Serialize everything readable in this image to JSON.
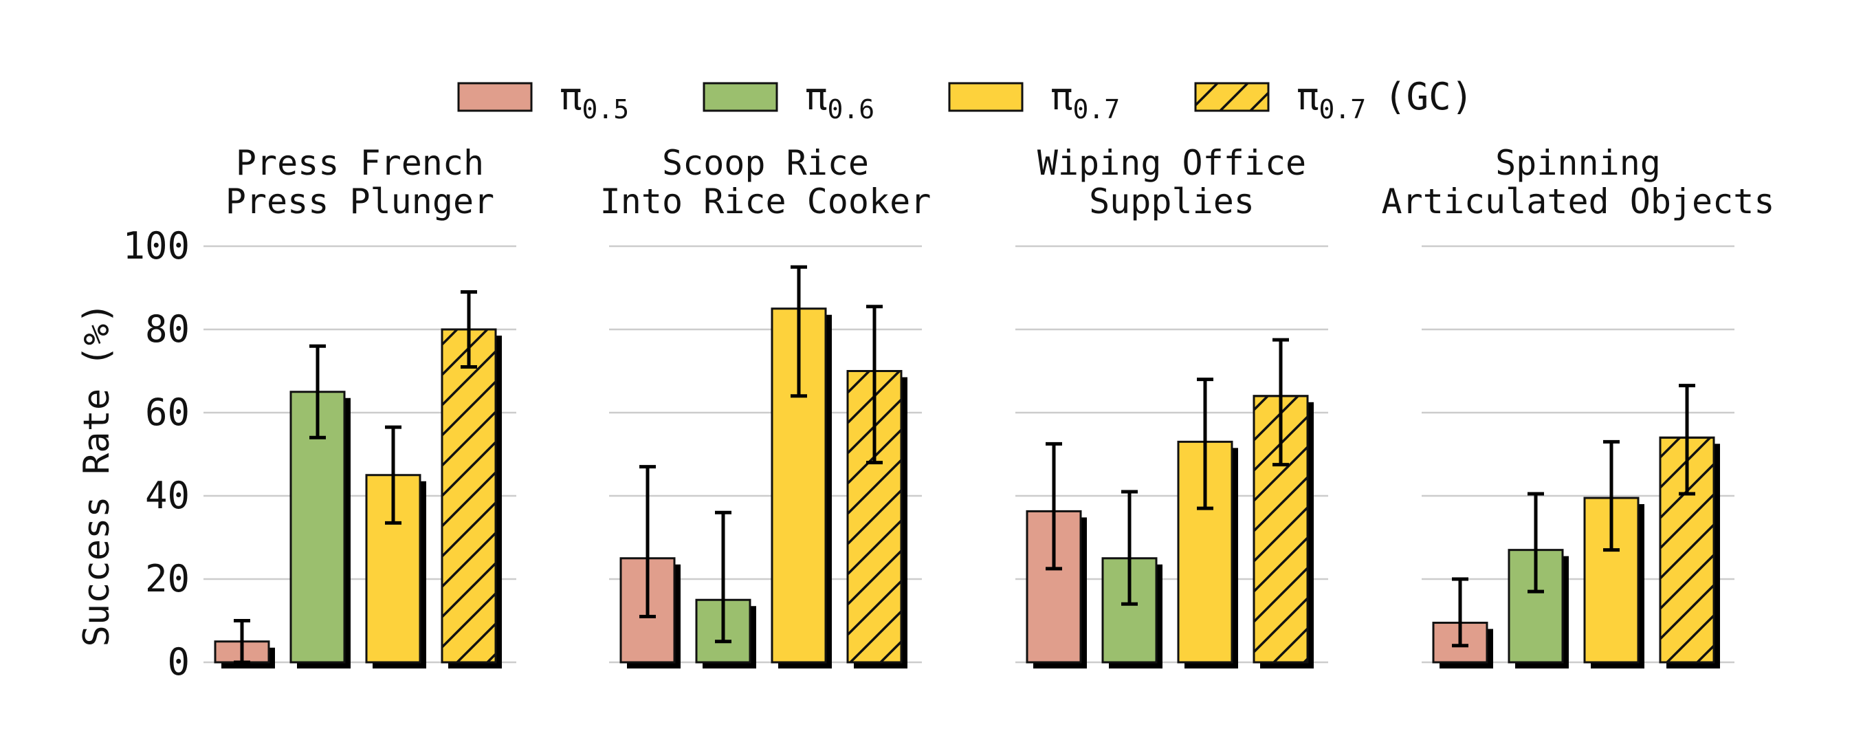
{
  "chart_data": {
    "type": "bar",
    "ylabel": "Success Rate (%)",
    "ylim": [
      0,
      100
    ],
    "yticks": [
      "0",
      "20",
      "40",
      "60",
      "80",
      "100"
    ],
    "grid": "horizontal",
    "legend_position": "top-center",
    "series": [
      {
        "id": "s05",
        "legend": {
          "main": "π",
          "sub": "0.5",
          "extra": ""
        },
        "color": "#e09e8c",
        "hatch": false
      },
      {
        "id": "s06",
        "legend": {
          "main": "π",
          "sub": "0.6",
          "extra": ""
        },
        "color": "#9bbf6e",
        "hatch": false
      },
      {
        "id": "s07",
        "legend": {
          "main": "π",
          "sub": "0.7",
          "extra": ""
        },
        "color": "#fdd23c",
        "hatch": false
      },
      {
        "id": "s07gc",
        "legend": {
          "main": "π",
          "sub": "0.7",
          "extra": "(GC)"
        },
        "color": "#fdd23c",
        "hatch": true
      }
    ],
    "panels": [
      {
        "title": [
          "Press French",
          "Press Plunger"
        ],
        "values": [
          5,
          65,
          45,
          80
        ],
        "errors": [
          [
            0,
            10
          ],
          [
            54,
            76
          ],
          [
            33.5,
            56.5
          ],
          [
            71,
            89
          ]
        ]
      },
      {
        "title": [
          "Scoop Rice",
          "Into Rice Cooker"
        ],
        "values": [
          25,
          15,
          85,
          70
        ],
        "errors": [
          [
            11,
            47
          ],
          [
            5,
            36
          ],
          [
            64,
            95
          ],
          [
            48,
            85.5
          ]
        ]
      },
      {
        "title": [
          "Wiping Office",
          "Supplies"
        ],
        "values": [
          36.3,
          25,
          53,
          64
        ],
        "errors": [
          [
            22.5,
            52.5
          ],
          [
            14,
            41
          ],
          [
            37,
            68
          ],
          [
            47.5,
            77.5
          ]
        ]
      },
      {
        "title": [
          "Spinning",
          "Articulated Objects"
        ],
        "values": [
          9.5,
          27,
          39.5,
          54
        ],
        "errors": [
          [
            4,
            20
          ],
          [
            17,
            40.5
          ],
          [
            27,
            53
          ],
          [
            40.5,
            66.5
          ]
        ]
      }
    ]
  }
}
